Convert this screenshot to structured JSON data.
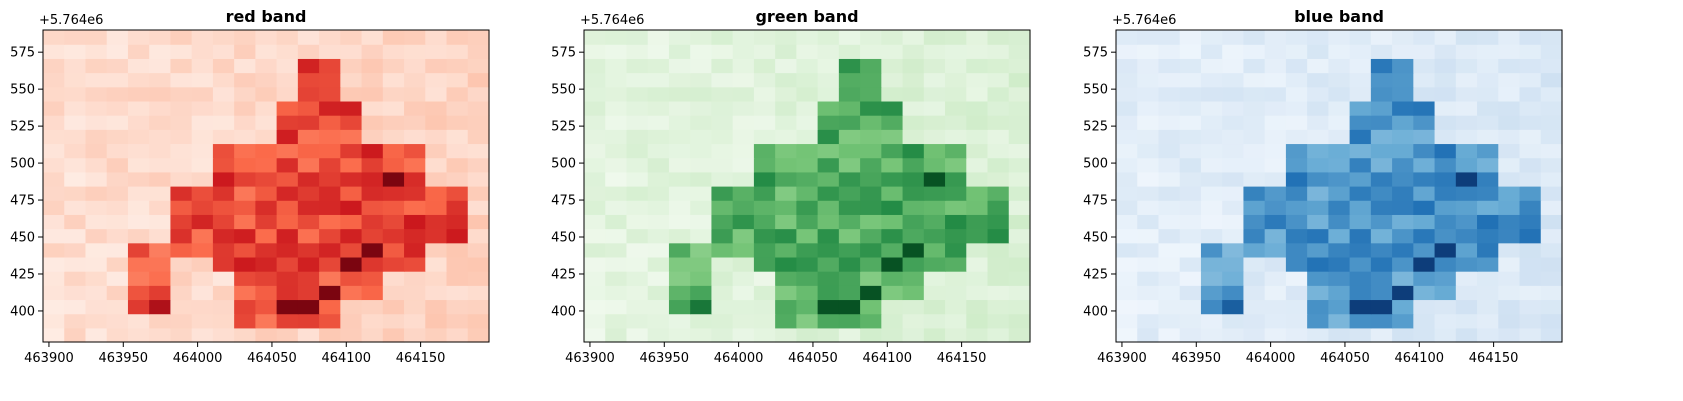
{
  "chart_data": [
    {
      "type": "heatmap",
      "title": "red band",
      "colormap": "Reds",
      "colors": [
        "#fff5f0",
        "#fcbba1",
        "#fb6a4a",
        "#cb181d",
        "#67000d"
      ],
      "y_offset_label": "+5.764e6",
      "x_ticks": [
        "463900",
        "463950",
        "464000",
        "464050",
        "464100",
        "464150"
      ],
      "y_ticks": [
        "400",
        "425",
        "450",
        "475",
        "500",
        "525",
        "550",
        "575"
      ],
      "xlim": [
        463896,
        464196
      ],
      "ylim": [
        379,
        590
      ],
      "grid": false
    },
    {
      "type": "heatmap",
      "title": "green band",
      "colormap": "Greens",
      "colors": [
        "#f7fcf5",
        "#c7e9c0",
        "#74c476",
        "#238b45",
        "#00441b"
      ],
      "y_offset_label": "+5.764e6",
      "x_ticks": [
        "463900",
        "463950",
        "464000",
        "464050",
        "464100",
        "464150"
      ],
      "y_ticks": [
        "400",
        "425",
        "450",
        "475",
        "500",
        "525",
        "550",
        "575"
      ],
      "xlim": [
        463896,
        464196
      ],
      "ylim": [
        379,
        590
      ],
      "grid": false
    },
    {
      "type": "heatmap",
      "title": "blue band",
      "colormap": "Blues",
      "colors": [
        "#f7fbff",
        "#c6dbef",
        "#6baed6",
        "#2171b5",
        "#08306b"
      ],
      "y_offset_label": "+5.764e6",
      "x_ticks": [
        "463900",
        "463950",
        "464000",
        "464050",
        "464100",
        "464150"
      ],
      "y_ticks": [
        "400",
        "425",
        "450",
        "475",
        "500",
        "525",
        "550",
        "575"
      ],
      "xlim": [
        463896,
        464196
      ],
      "ylim": [
        379,
        590
      ],
      "grid": false
    }
  ]
}
